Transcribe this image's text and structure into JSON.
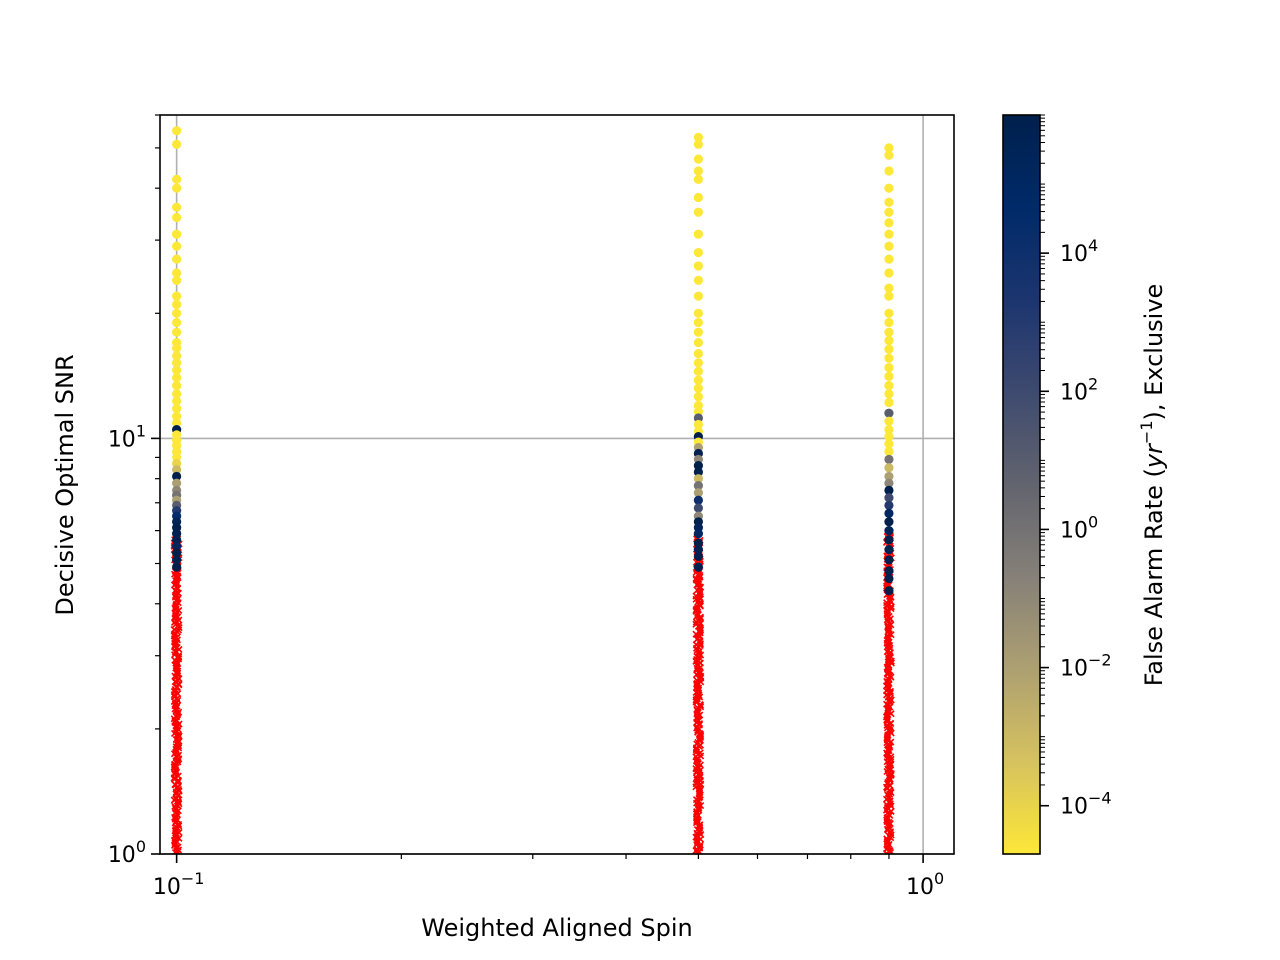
{
  "chart_data": {
    "type": "scatter",
    "title": "",
    "xlabel": "Weighted Aligned Spin",
    "ylabel": "Decisive Optimal SNR",
    "xscale": "log",
    "yscale": "log",
    "xlim": [
      0.095,
      1.1
    ],
    "ylim": [
      1,
      60
    ],
    "grid": true,
    "x_ticks": [
      {
        "value": 0.1,
        "base": "10",
        "exp": "−1"
      },
      {
        "value": 1.0,
        "base": "10",
        "exp": "0"
      }
    ],
    "y_ticks": [
      {
        "value": 1,
        "base": "10",
        "exp": "0"
      },
      {
        "value": 10,
        "base": "10",
        "exp": "1"
      }
    ],
    "colorbar": {
      "label": "False Alarm Rate (yr⁻¹), Exclusive",
      "label_parts": [
        "False Alarm Rate (",
        "yr",
        "−1",
        "), Exclusive"
      ],
      "scale": "log",
      "range": [
        2e-05,
        1000000
      ],
      "colormap": "cividis_r",
      "colors": [
        "#fde738",
        "#d6c25f",
        "#ada071",
        "#868078",
        "#62646e",
        "#3e4a6f",
        "#1c356f",
        "#002a69",
        "#00204c"
      ],
      "ticks": [
        {
          "value": 0.0001,
          "base": "10",
          "exp": "−4"
        },
        {
          "value": 0.01,
          "base": "10",
          "exp": "−2"
        },
        {
          "value": 1,
          "base": "10",
          "exp": "0"
        },
        {
          "value": 100,
          "base": "10",
          "exp": "2"
        },
        {
          "value": 10000,
          "base": "10",
          "exp": "4"
        }
      ]
    },
    "series": [
      {
        "x": 0.1,
        "found": [
          {
            "snr": 55,
            "far": 2e-05
          },
          {
            "snr": 51,
            "far": 2e-05
          },
          {
            "snr": 42,
            "far": 2e-05
          },
          {
            "snr": 40,
            "far": 2e-05
          },
          {
            "snr": 36,
            "far": 2e-05
          },
          {
            "snr": 34,
            "far": 2e-05
          },
          {
            "snr": 31,
            "far": 2e-05
          },
          {
            "snr": 29,
            "far": 2e-05
          },
          {
            "snr": 27,
            "far": 2e-05
          },
          {
            "snr": 25,
            "far": 2e-05
          },
          {
            "snr": 24,
            "far": 2e-05
          },
          {
            "snr": 22,
            "far": 2e-05
          },
          {
            "snr": 21,
            "far": 2e-05
          },
          {
            "snr": 20,
            "far": 2e-05
          },
          {
            "snr": 19,
            "far": 2e-05
          },
          {
            "snr": 18,
            "far": 2e-05
          },
          {
            "snr": 17,
            "far": 2e-05
          },
          {
            "snr": 16.5,
            "far": 2e-05
          },
          {
            "snr": 15.8,
            "far": 2e-05
          },
          {
            "snr": 15.2,
            "far": 2e-05
          },
          {
            "snr": 14.6,
            "far": 2e-05
          },
          {
            "snr": 14,
            "far": 2e-05
          },
          {
            "snr": 13.4,
            "far": 2e-05
          },
          {
            "snr": 12.8,
            "far": 2e-05
          },
          {
            "snr": 12.3,
            "far": 2e-05
          },
          {
            "snr": 11.8,
            "far": 2e-05
          },
          {
            "snr": 11.3,
            "far": 2e-05
          },
          {
            "snr": 10.9,
            "far": 2e-05
          },
          {
            "snr": 10.5,
            "far": 1000000
          },
          {
            "snr": 10.2,
            "far": 2e-05
          },
          {
            "snr": 9.9,
            "far": 2e-05
          },
          {
            "snr": 9.6,
            "far": 2e-05
          },
          {
            "snr": 9.3,
            "far": 2e-05
          },
          {
            "snr": 9.0,
            "far": 2e-05
          },
          {
            "snr": 8.7,
            "far": 0.0001
          },
          {
            "snr": 8.4,
            "far": 0.001
          },
          {
            "snr": 8.1,
            "far": 1000000
          },
          {
            "snr": 7.8,
            "far": 0.01
          },
          {
            "snr": 7.5,
            "far": 0.1
          },
          {
            "snr": 7.3,
            "far": 1
          },
          {
            "snr": 7.1,
            "far": 0.01
          },
          {
            "snr": 6.9,
            "far": 10
          },
          {
            "snr": 6.7,
            "far": 1000
          },
          {
            "snr": 6.5,
            "far": 30000
          },
          {
            "snr": 6.3,
            "far": 300000
          },
          {
            "snr": 6.1,
            "far": 1000000
          },
          {
            "snr": 5.9,
            "far": 500000
          },
          {
            "snr": 5.7,
            "far": 1000000
          },
          {
            "snr": 5.5,
            "far": 200000
          },
          {
            "snr": 5.3,
            "far": 1000000
          },
          {
            "snr": 5.1,
            "far": 800000
          },
          {
            "snr": 4.9,
            "far": 1000000
          }
        ],
        "missed_snr_range": [
          1.0,
          5.9
        ]
      },
      {
        "x": 0.5,
        "found": [
          {
            "snr": 53,
            "far": 2e-05
          },
          {
            "snr": 51,
            "far": 2e-05
          },
          {
            "snr": 47,
            "far": 2e-05
          },
          {
            "snr": 44,
            "far": 2e-05
          },
          {
            "snr": 42,
            "far": 2e-05
          },
          {
            "snr": 38,
            "far": 2e-05
          },
          {
            "snr": 35,
            "far": 2e-05
          },
          {
            "snr": 31,
            "far": 2e-05
          },
          {
            "snr": 28,
            "far": 2e-05
          },
          {
            "snr": 26,
            "far": 2e-05
          },
          {
            "snr": 24,
            "far": 2e-05
          },
          {
            "snr": 22,
            "far": 2e-05
          },
          {
            "snr": 20,
            "far": 2e-05
          },
          {
            "snr": 19,
            "far": 2e-05
          },
          {
            "snr": 18,
            "far": 2e-05
          },
          {
            "snr": 17,
            "far": 2e-05
          },
          {
            "snr": 16,
            "far": 2e-05
          },
          {
            "snr": 15.2,
            "far": 2e-05
          },
          {
            "snr": 14.5,
            "far": 2e-05
          },
          {
            "snr": 13.8,
            "far": 2e-05
          },
          {
            "snr": 13.2,
            "far": 2e-05
          },
          {
            "snr": 12.6,
            "far": 2e-05
          },
          {
            "snr": 12.0,
            "far": 2e-05
          },
          {
            "snr": 11.6,
            "far": 2e-05
          },
          {
            "snr": 11.2,
            "far": 10
          },
          {
            "snr": 10.8,
            "far": 2e-05
          },
          {
            "snr": 10.4,
            "far": 2e-05
          },
          {
            "snr": 10.1,
            "far": 1000000
          },
          {
            "snr": 9.8,
            "far": 2e-05
          },
          {
            "snr": 9.5,
            "far": 0.01
          },
          {
            "snr": 9.2,
            "far": 500000
          },
          {
            "snr": 8.9,
            "far": 0.1
          },
          {
            "snr": 8.6,
            "far": 1000000
          },
          {
            "snr": 8.3,
            "far": 800000
          },
          {
            "snr": 8.0,
            "far": 0.001
          },
          {
            "snr": 7.7,
            "far": 1
          },
          {
            "snr": 7.4,
            "far": 0.01
          },
          {
            "snr": 7.1,
            "far": 10000
          },
          {
            "snr": 6.8,
            "far": 100
          },
          {
            "snr": 6.5,
            "far": 0.1
          },
          {
            "snr": 6.3,
            "far": 1000000
          },
          {
            "snr": 6.1,
            "far": 300000
          },
          {
            "snr": 5.9,
            "far": 100000
          },
          {
            "snr": 5.6,
            "far": 1000000
          },
          {
            "snr": 5.4,
            "far": 500000
          },
          {
            "snr": 5.2,
            "far": 1000000
          },
          {
            "snr": 4.9,
            "far": 700000
          }
        ],
        "missed_snr_range": [
          1.0,
          5.8
        ]
      },
      {
        "x": 0.9,
        "found": [
          {
            "snr": 50,
            "far": 2e-05
          },
          {
            "snr": 48,
            "far": 2e-05
          },
          {
            "snr": 44,
            "far": 2e-05
          },
          {
            "snr": 40,
            "far": 2e-05
          },
          {
            "snr": 37,
            "far": 2e-05
          },
          {
            "snr": 35,
            "far": 2e-05
          },
          {
            "snr": 33,
            "far": 2e-05
          },
          {
            "snr": 31,
            "far": 2e-05
          },
          {
            "snr": 29,
            "far": 2e-05
          },
          {
            "snr": 27,
            "far": 2e-05
          },
          {
            "snr": 25,
            "far": 2e-05
          },
          {
            "snr": 23,
            "far": 2e-05
          },
          {
            "snr": 22,
            "far": 2e-05
          },
          {
            "snr": 20,
            "far": 2e-05
          },
          {
            "snr": 19,
            "far": 2e-05
          },
          {
            "snr": 18,
            "far": 2e-05
          },
          {
            "snr": 17.2,
            "far": 2e-05
          },
          {
            "snr": 16.4,
            "far": 2e-05
          },
          {
            "snr": 15.6,
            "far": 2e-05
          },
          {
            "snr": 14.8,
            "far": 2e-05
          },
          {
            "snr": 14.1,
            "far": 2e-05
          },
          {
            "snr": 13.4,
            "far": 2e-05
          },
          {
            "snr": 12.8,
            "far": 2e-05
          },
          {
            "snr": 12.2,
            "far": 2e-05
          },
          {
            "snr": 11.5,
            "far": 10
          },
          {
            "snr": 11.0,
            "far": 2e-05
          },
          {
            "snr": 10.5,
            "far": 2e-05
          },
          {
            "snr": 10.1,
            "far": 2e-05
          },
          {
            "snr": 9.7,
            "far": 2e-05
          },
          {
            "snr": 9.3,
            "far": 2e-05
          },
          {
            "snr": 8.9,
            "far": 1
          },
          {
            "snr": 8.5,
            "far": 0.001
          },
          {
            "snr": 8.1,
            "far": 0.01
          },
          {
            "snr": 7.8,
            "far": 0.1
          },
          {
            "snr": 7.5,
            "far": 1000000
          },
          {
            "snr": 7.2,
            "far": 100
          },
          {
            "snr": 6.9,
            "far": 1000
          },
          {
            "snr": 6.6,
            "far": 100000
          },
          {
            "snr": 6.3,
            "far": 1000000
          },
          {
            "snr": 6.0,
            "far": 300000
          },
          {
            "snr": 5.7,
            "far": 1000000
          },
          {
            "snr": 5.4,
            "far": 500000
          },
          {
            "snr": 5.1,
            "far": 1000000
          },
          {
            "snr": 4.8,
            "far": 800000
          },
          {
            "snr": 4.6,
            "far": 1000000
          },
          {
            "snr": 4.3,
            "far": 1000000
          }
        ],
        "missed_snr_range": [
          1.0,
          6.0
        ]
      }
    ]
  }
}
